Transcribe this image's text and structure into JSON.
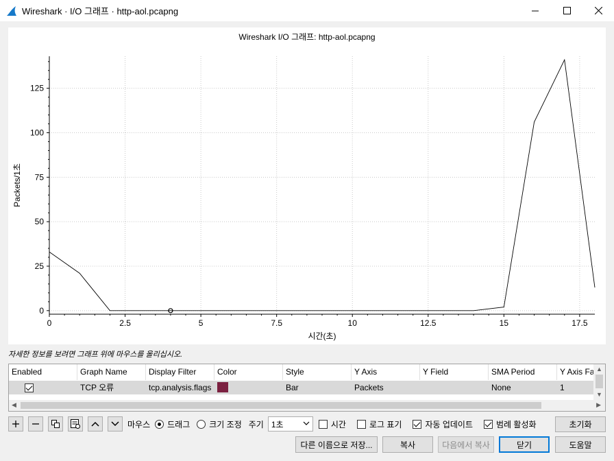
{
  "window": {
    "title": "Wireshark · I/O 그래프 · http-aol.pcapng"
  },
  "chart_data": {
    "type": "line",
    "title": "Wireshark I/O 그래프: http-aol.pcapng",
    "xlabel": "시간(초)",
    "ylabel": "Packets/1초",
    "xlim": [
      0,
      18
    ],
    "ylim": [
      -2,
      143
    ],
    "xticks": [
      0,
      2.5,
      5,
      7.5,
      10,
      12.5,
      15,
      17.5
    ],
    "xtick_labels": [
      "0",
      "2.5",
      "5",
      "7.5",
      "10",
      "12.5",
      "15",
      "17.5"
    ],
    "yticks": [
      0,
      25,
      50,
      75,
      100,
      125
    ],
    "ytick_labels": [
      "0",
      "25",
      "50",
      "75",
      "100",
      "125"
    ],
    "grid": true,
    "series": [
      {
        "name": "TCP 오류",
        "x": [
          0,
          1,
          2,
          3,
          4,
          5,
          6,
          7,
          8,
          9,
          10,
          11,
          12,
          13,
          14,
          15,
          16,
          17,
          18
        ],
        "y": [
          33,
          21,
          0,
          0,
          0,
          0,
          0,
          0,
          0,
          0,
          0,
          0,
          0,
          0,
          0,
          2,
          106,
          141,
          13
        ]
      }
    ],
    "marker": {
      "x": 4,
      "y": 0
    }
  },
  "hint": "자세한 정보를 보려면 그래프 위에 마우스를 올리십시오.",
  "table": {
    "columns": [
      "Enabled",
      "Graph Name",
      "Display Filter",
      "Color",
      "Style",
      "Y Axis",
      "Y Field",
      "SMA Period",
      "Y Axis Fa"
    ],
    "rows": [
      {
        "enabled": true,
        "graph_name": "TCP 오류",
        "display_filter": "tcp.analysis.flags",
        "color": "#7b2040",
        "style": "Bar",
        "y_axis": "Packets",
        "y_field": "",
        "sma_period": "None",
        "y_axis_factor": "1"
      }
    ]
  },
  "toolbar": {
    "mouse_label": "마우스",
    "drag_label": "드래그",
    "zoom_label": "크기 조정",
    "interval_label": "주기",
    "interval_value": "1초",
    "time_label": "시간",
    "log_label": "로그 표기",
    "auto_update_label": "자동 업데이트",
    "legend_label": "범례 활성화",
    "reset_label": "초기화",
    "time_checked": false,
    "log_checked": false,
    "auto_update_checked": true,
    "legend_checked": true
  },
  "buttons": {
    "save_as": "다른 이름으로 저장...",
    "copy": "복사",
    "copy_from": "다음에서 복사",
    "close": "닫기",
    "help": "도움말"
  }
}
